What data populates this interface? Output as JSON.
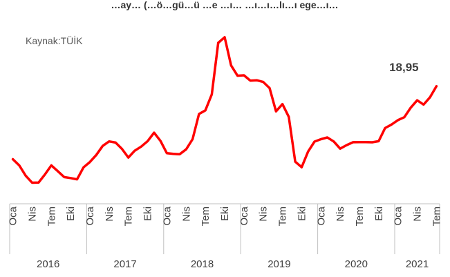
{
  "chart_data": {
    "type": "line",
    "title": "…ay… (…ö…gü…ü …e …ı… …ı…ı…lı…ı ege…ı…",
    "source_label": "Kaynak:TÜİK",
    "last_value_label": "18,95",
    "colors": {
      "line": "#ff0000",
      "axis": "#bfbfbf",
      "text": "#595959",
      "label": "#404040"
    },
    "x_month_ticks": [
      "Oca",
      "Nis",
      "Tem",
      "Eki"
    ],
    "years": [
      {
        "label": "2016",
        "months": [
          "Oca",
          "Nis",
          "Tem",
          "Eki"
        ]
      },
      {
        "label": "2017",
        "months": [
          "Oca",
          "Nis",
          "Tem",
          "Eki"
        ]
      },
      {
        "label": "2018",
        "months": [
          "Oca",
          "Nis",
          "Tem",
          "Eki"
        ]
      },
      {
        "label": "2019",
        "months": [
          "Oca",
          "Nis",
          "Tem",
          "Eki"
        ]
      },
      {
        "label": "2020",
        "months": [
          "Oca",
          "Nis",
          "Tem",
          "Eki"
        ]
      },
      {
        "label": "2021",
        "months": [
          "Oca",
          "Nis",
          "Tem"
        ]
      }
    ],
    "start": "2016-01",
    "end": "2021-07",
    "ylim": [
      2,
      27
    ],
    "series": [
      {
        "values": [
          9.58,
          8.78,
          7.46,
          6.57,
          6.58,
          7.64,
          8.79,
          8.05,
          7.28,
          7.16,
          7.0,
          8.53,
          9.22,
          10.13,
          11.29,
          11.87,
          11.72,
          10.9,
          9.79,
          10.68,
          11.2,
          11.9,
          12.98,
          11.92,
          10.35,
          10.26,
          10.23,
          10.85,
          12.15,
          15.39,
          15.85,
          17.9,
          24.52,
          25.24,
          21.62,
          20.3,
          20.35,
          19.67,
          19.71,
          19.5,
          18.71,
          15.72,
          16.65,
          15.01,
          9.26,
          8.55,
          10.56,
          11.84,
          12.15,
          12.37,
          11.86,
          10.94,
          11.39,
          11.76,
          11.77,
          11.77,
          11.75,
          11.89,
          13.58,
          14.03,
          14.6,
          14.97,
          16.19,
          17.14,
          16.59,
          17.53,
          18.95
        ]
      }
    ]
  }
}
